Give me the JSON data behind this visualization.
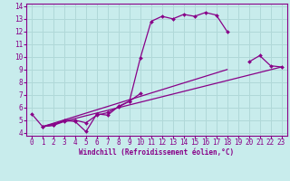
{
  "xlabel": "Windchill (Refroidissement éolien,°C)",
  "bg_color": "#c8ecec",
  "grid_color": "#b0d8d8",
  "line_color": "#880088",
  "xlim": [
    -0.5,
    23.5
  ],
  "ylim": [
    3.8,
    14.2
  ],
  "xticks": [
    0,
    1,
    2,
    3,
    4,
    5,
    6,
    7,
    8,
    9,
    10,
    11,
    12,
    13,
    14,
    15,
    16,
    17,
    18,
    19,
    20,
    21,
    22,
    23
  ],
  "yticks": [
    4,
    5,
    6,
    7,
    8,
    9,
    10,
    11,
    12,
    13,
    14
  ],
  "curve_main": {
    "x": [
      0,
      1,
      2,
      3,
      4,
      5,
      6,
      7,
      8,
      9,
      10,
      11,
      12,
      13,
      14,
      15,
      16,
      17,
      18
    ],
    "y": [
      5.5,
      4.5,
      4.6,
      5.0,
      4.9,
      4.1,
      5.5,
      5.4,
      6.1,
      6.5,
      9.9,
      12.8,
      13.2,
      13.0,
      13.35,
      13.2,
      13.5,
      13.3,
      12.0
    ]
  },
  "curve_end": {
    "x": [
      20,
      21,
      22,
      23
    ],
    "y": [
      9.6,
      10.1,
      9.3,
      9.2
    ]
  },
  "curve_lower": {
    "x": [
      1,
      2,
      3,
      4,
      5,
      6,
      7,
      8,
      9,
      10
    ],
    "y": [
      4.5,
      4.6,
      4.9,
      5.0,
      4.8,
      5.4,
      5.6,
      6.05,
      6.5,
      7.1
    ]
  },
  "line1": {
    "x": [
      1,
      23
    ],
    "y": [
      4.5,
      9.2
    ]
  },
  "line2": {
    "x": [
      1,
      18
    ],
    "y": [
      4.5,
      9.0
    ]
  },
  "tick_fontsize": 5.5,
  "xlabel_fontsize": 5.5
}
